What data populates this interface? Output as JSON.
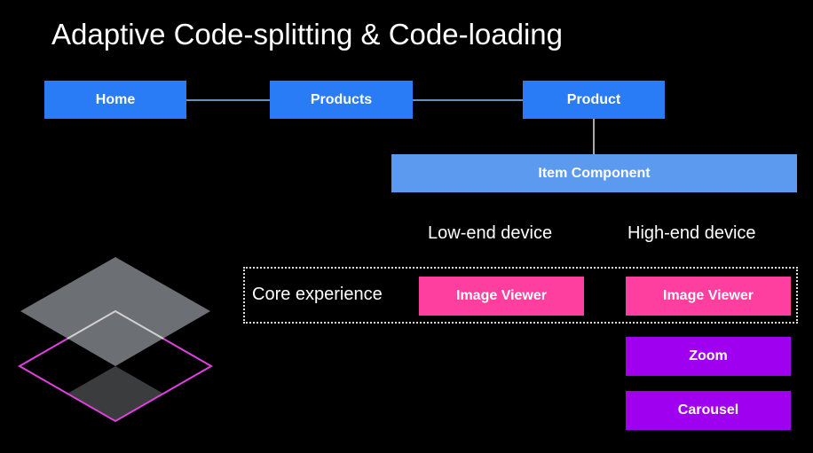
{
  "title": "Adaptive Code-splitting & Code-loading",
  "nav": {
    "home": "Home",
    "products": "Products",
    "product": "Product"
  },
  "item_component": "Item Component",
  "columns": {
    "low_end": "Low-end device",
    "high_end": "High-end device"
  },
  "core_experience": "Core experience",
  "low_end_modules": [
    "Image Viewer"
  ],
  "high_end_modules": [
    "Image Viewer",
    "Zoom",
    "Carousel"
  ],
  "colors": {
    "route": "#2a7bf6",
    "component": "#5c9af0",
    "core": "#ff3fa0",
    "enhanced": "#a000f0",
    "layer_outline": "#e040e0"
  }
}
